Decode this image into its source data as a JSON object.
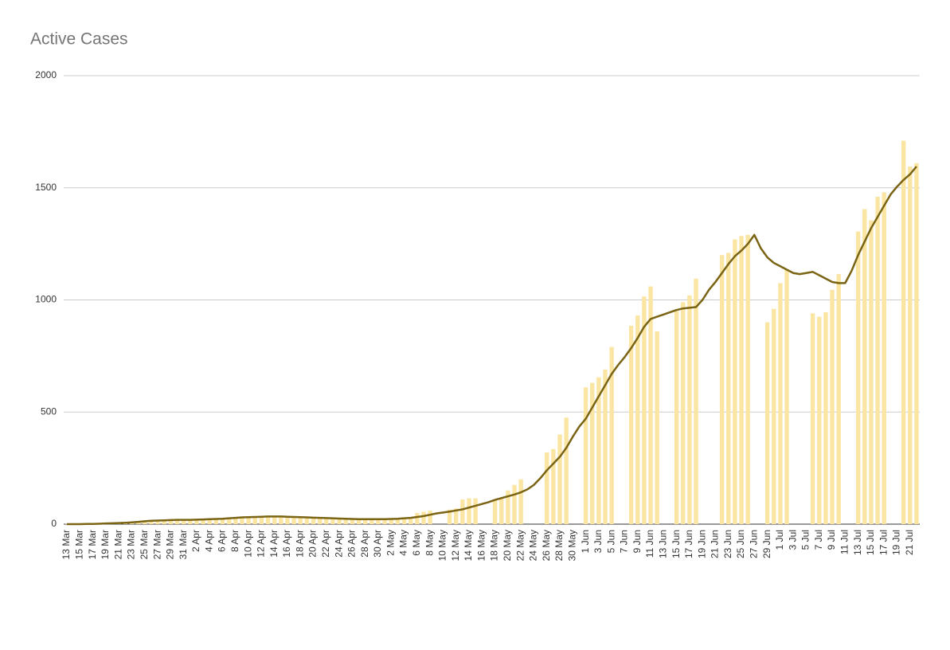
{
  "chart_data": {
    "type": "combo",
    "title": "Active Cases",
    "categories": [
      "13 Mar",
      null,
      "15 Mar",
      null,
      "17 Mar",
      null,
      "19 Mar",
      null,
      "21 Mar",
      null,
      "23 Mar",
      null,
      "25 Mar",
      null,
      "27 Mar",
      null,
      "29 Mar",
      null,
      "31 Mar",
      null,
      "2 Apr",
      null,
      "4 Apr",
      null,
      "6 Apr",
      null,
      "8 Apr",
      null,
      "10 Apr",
      null,
      "12 Apr",
      null,
      "14 Apr",
      null,
      "16 Apr",
      null,
      "18 Apr",
      null,
      "20 Apr",
      null,
      "22 Apr",
      null,
      "24 Apr",
      null,
      "26 Apr",
      null,
      "28 Apr",
      null,
      "30 Apr",
      null,
      "2 May",
      null,
      "4 May",
      null,
      "6 May",
      null,
      "8 May",
      null,
      "10 May",
      null,
      "12 May",
      null,
      "14 May",
      null,
      "16 May",
      null,
      "18 May",
      null,
      "20 May",
      null,
      "22 May",
      null,
      "24 May",
      null,
      "26 May",
      null,
      "28 May",
      null,
      "30 May",
      null,
      "1 Jun",
      null,
      "3 Jun",
      null,
      "5 Jun",
      null,
      "7 Jun",
      null,
      "9 Jun",
      null,
      "11 Jun",
      null,
      "13 Jun",
      null,
      "15 Jun",
      null,
      "17 Jun",
      null,
      "19 Jun",
      null,
      "21 Jun",
      null,
      "23 Jun",
      null,
      "25 Jun",
      null,
      "27 Jun",
      null,
      "29 Jun",
      null,
      "1 Jul",
      null,
      "3 Jul",
      null,
      "5 Jul",
      null,
      "7 Jul",
      null,
      "9 Jul",
      null,
      "11 Jul",
      null,
      "13 Jul",
      null,
      "15 Jul",
      null,
      "17 Jul",
      null,
      "19 Jul",
      null,
      "21 Jul",
      null
    ],
    "series": [
      {
        "type": "bar",
        "color": "#fae5a3",
        "values": [
          1,
          1,
          1,
          2,
          2,
          3,
          3,
          4,
          5,
          6,
          8,
          10,
          12,
          14,
          15,
          16,
          17,
          18,
          18,
          19,
          20,
          21,
          22,
          24,
          26,
          29,
          31,
          33,
          34,
          35,
          35,
          35,
          34,
          33,
          32,
          31,
          30,
          30,
          29,
          28,
          27,
          26,
          25,
          24,
          23,
          22,
          22,
          22,
          22,
          23,
          24,
          26,
          28,
          32,
          50,
          55,
          60,
          0,
          0,
          65,
          70,
          110,
          115,
          115,
          0,
          0,
          110,
          120,
          150,
          175,
          200,
          0,
          0,
          0,
          320,
          335,
          400,
          475,
          0,
          0,
          610,
          630,
          655,
          690,
          790,
          0,
          0,
          885,
          930,
          1015,
          1060,
          860,
          0,
          0,
          950,
          990,
          1020,
          1095,
          0,
          0,
          0,
          1200,
          1210,
          1270,
          1285,
          1290,
          0,
          0,
          900,
          960,
          1075,
          1135,
          0,
          0,
          0,
          940,
          925,
          945,
          1045,
          1115,
          0,
          0,
          1305,
          1405,
          1355,
          1460,
          1480,
          0,
          0,
          1710,
          1595,
          1610
        ]
      },
      {
        "type": "line",
        "color": "#7a6414",
        "values": [
          0,
          0,
          0,
          1,
          1,
          2,
          3,
          4,
          5,
          6,
          8,
          10,
          13,
          15,
          16,
          17,
          18,
          19,
          19,
          19,
          20,
          21,
          22,
          23,
          24,
          26,
          28,
          30,
          31,
          32,
          33,
          34,
          34,
          34,
          33,
          32,
          31,
          30,
          29,
          28,
          27,
          26,
          25,
          24,
          23,
          22,
          22,
          22,
          22,
          22,
          23,
          24,
          26,
          28,
          32,
          36,
          42,
          48,
          52,
          56,
          61,
          66,
          74,
          82,
          90,
          98,
          108,
          116,
          124,
          132,
          142,
          155,
          175,
          205,
          240,
          270,
          300,
          340,
          390,
          435,
          470,
          520,
          570,
          620,
          670,
          710,
          745,
          785,
          830,
          880,
          915,
          925,
          935,
          945,
          955,
          962,
          965,
          968,
          1000,
          1045,
          1080,
          1120,
          1160,
          1195,
          1220,
          1250,
          1290,
          1230,
          1190,
          1165,
          1150,
          1135,
          1120,
          1115,
          1120,
          1125,
          1110,
          1095,
          1080,
          1075,
          1075,
          1130,
          1200,
          1260,
          1320,
          1370,
          1420,
          1470,
          1505,
          1535,
          1560,
          1595
        ]
      }
    ],
    "ylim": [
      0,
      2000
    ],
    "yticks": [
      0,
      500,
      1000,
      1500,
      2000
    ],
    "grid": true
  }
}
